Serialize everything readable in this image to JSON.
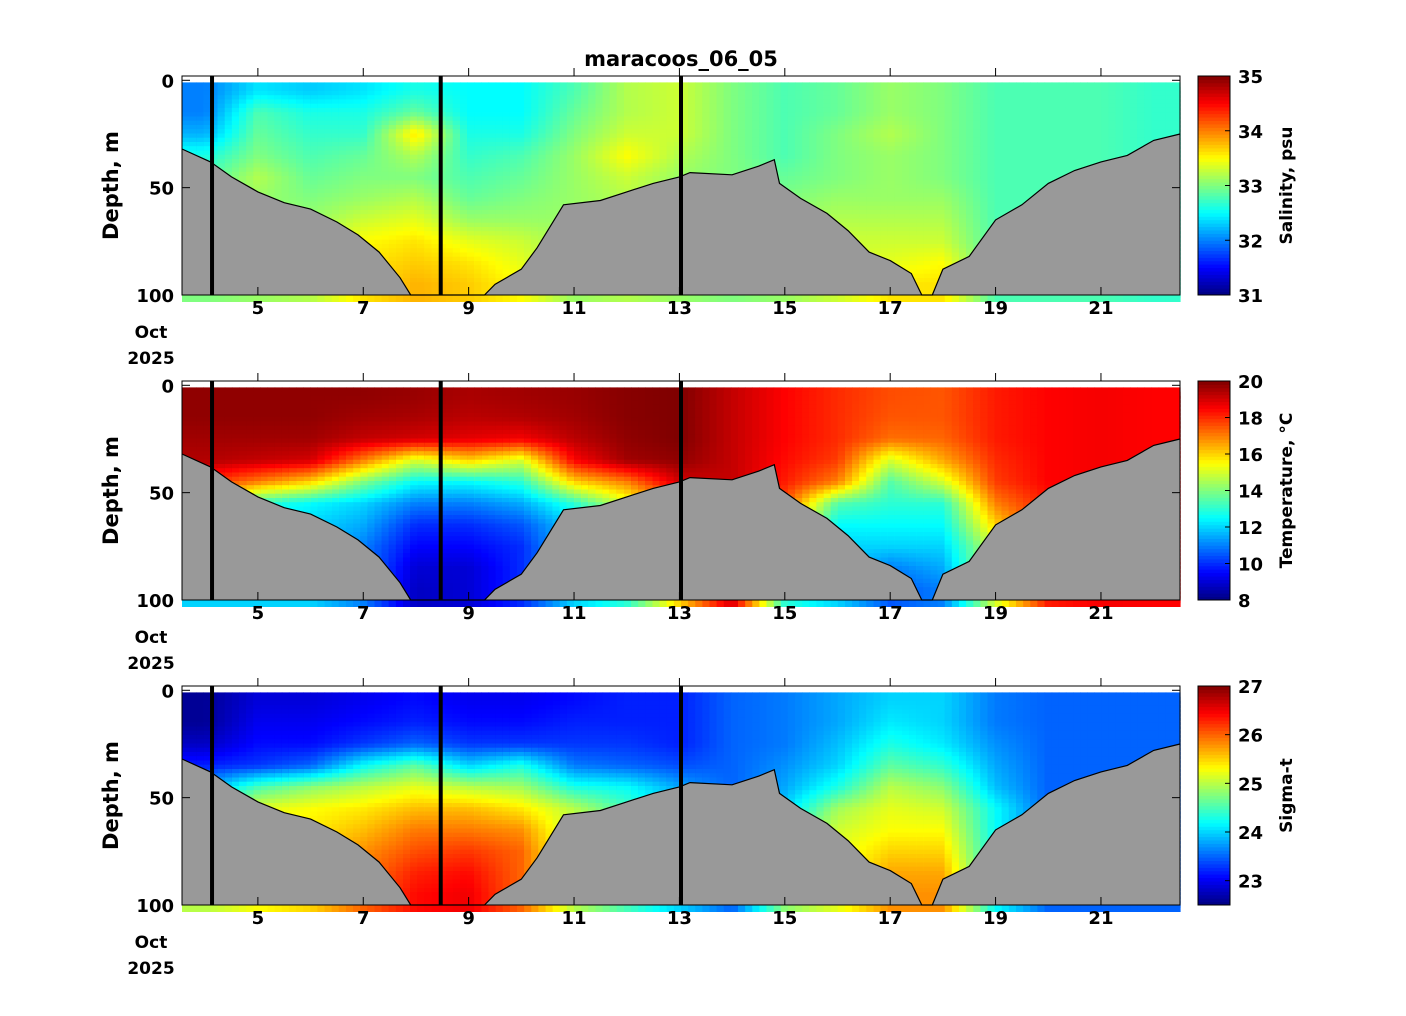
{
  "title": "maracoos_06_05",
  "date_label": {
    "month": "Oct",
    "year": "2025"
  },
  "shared": {
    "xlim_days": [
      3.56,
      22.5
    ],
    "x_ticks": [
      5,
      7,
      9,
      11,
      13,
      15,
      17,
      19,
      21
    ],
    "x_tick_labels": [
      "5",
      "7",
      "9",
      "11",
      "13",
      "15",
      "17",
      "19",
      "21"
    ],
    "ylim": [
      -2,
      100
    ],
    "y_ticks": [
      0,
      50,
      100
    ],
    "y_tick_labels": [
      "0",
      "50",
      "100"
    ],
    "ylabel": "Depth, m",
    "vertical_markers_days": [
      4.13,
      8.47,
      13.03
    ],
    "grid_days": [
      4,
      5,
      6,
      7,
      8,
      9,
      10,
      11,
      12,
      13,
      14,
      15,
      16,
      17,
      18,
      19,
      20,
      21,
      22
    ],
    "grid_depths": [
      5,
      15,
      25,
      35,
      45,
      55,
      65,
      75,
      85,
      95
    ],
    "bathymetry": {
      "days": [
        3.56,
        4.1,
        4.5,
        5.0,
        5.5,
        6.0,
        6.5,
        6.9,
        7.3,
        7.7,
        7.9,
        8.5,
        9.3,
        9.5,
        10.0,
        10.3,
        10.5,
        10.8,
        11.5,
        12.0,
        12.5,
        13.0,
        13.2,
        14.0,
        14.5,
        14.8,
        14.9,
        15.3,
        15.8,
        16.2,
        16.6,
        17.0,
        17.4,
        17.6,
        17.8,
        18.0,
        18.5,
        19.0,
        19.5,
        20.0,
        20.5,
        21.0,
        21.5,
        22.0,
        22.5
      ],
      "depths": [
        32,
        38,
        45,
        52,
        57,
        60,
        66,
        72,
        80,
        92,
        100,
        100,
        100,
        95,
        88,
        78,
        70,
        58,
        56,
        52,
        48,
        45,
        43,
        44,
        40,
        37,
        48,
        55,
        62,
        70,
        80,
        84,
        90,
        100,
        100,
        88,
        82,
        65,
        58,
        48,
        42,
        38,
        35,
        28,
        25
      ]
    }
  },
  "chart_data": [
    {
      "type": "heatmap",
      "variable": "salinity",
      "colorbar_label": "Salinity, psu",
      "clim": [
        31,
        35
      ],
      "cbar_ticks": [
        31,
        32,
        33,
        34,
        35
      ],
      "cbar_tick_labels": [
        "31",
        "32",
        "33",
        "34",
        "35"
      ],
      "values_by_day": [
        [
          32.0,
          32.0,
          32.2,
          32.6,
          32.8,
          33.0,
          33.0,
          33.0,
          33.0,
          33.0
        ],
        [
          32.4,
          32.8,
          32.9,
          33.0,
          33.2,
          33.1,
          33.1,
          33.1,
          33.1,
          33.1
        ],
        [
          32.3,
          32.6,
          32.7,
          32.8,
          32.9,
          33.0,
          33.1,
          33.2,
          33.2,
          33.2
        ],
        [
          32.4,
          32.6,
          32.7,
          32.9,
          33.0,
          33.1,
          33.3,
          33.5,
          33.6,
          33.6
        ],
        [
          32.6,
          32.9,
          33.6,
          33.2,
          33.0,
          33.2,
          33.4,
          33.6,
          33.7,
          33.8
        ],
        [
          32.5,
          32.5,
          32.6,
          32.7,
          32.8,
          32.9,
          33.1,
          33.4,
          33.6,
          33.7
        ],
        [
          32.5,
          32.5,
          32.6,
          32.8,
          32.9,
          33.0,
          33.1,
          33.3,
          33.4,
          33.5
        ],
        [
          32.8,
          32.9,
          33.0,
          33.1,
          33.1,
          33.1,
          33.1,
          33.1,
          33.1,
          33.1
        ],
        [
          33.2,
          33.2,
          33.3,
          33.5,
          33.3,
          33.2,
          33.2,
          33.2,
          33.2,
          33.2
        ],
        [
          33.3,
          33.3,
          33.3,
          33.2,
          33.1,
          33.1,
          33.1,
          33.1,
          33.1,
          33.1
        ],
        [
          33.0,
          33.0,
          33.0,
          33.0,
          33.0,
          33.0,
          33.0,
          33.0,
          33.0,
          33.0
        ],
        [
          32.8,
          32.8,
          32.8,
          32.8,
          32.9,
          33.0,
          33.1,
          33.1,
          33.1,
          33.1
        ],
        [
          32.9,
          32.9,
          33.0,
          33.0,
          33.0,
          33.1,
          33.2,
          33.3,
          33.3,
          33.3
        ],
        [
          33.1,
          33.1,
          33.2,
          33.1,
          33.1,
          33.1,
          33.2,
          33.3,
          33.4,
          33.6
        ],
        [
          33.0,
          33.0,
          33.0,
          33.0,
          33.0,
          33.1,
          33.2,
          33.3,
          33.5,
          33.6
        ],
        [
          32.8,
          32.8,
          32.8,
          32.8,
          32.8,
          32.8,
          32.8,
          32.8,
          32.8,
          32.8
        ],
        [
          32.8,
          32.8,
          32.8,
          32.8,
          32.8,
          32.8,
          32.8,
          32.8,
          32.8,
          32.8
        ],
        [
          32.8,
          32.8,
          32.8,
          32.8,
          32.8,
          32.8,
          32.8,
          32.8,
          32.8,
          32.8
        ],
        [
          32.7,
          32.7,
          32.7,
          32.7,
          32.7,
          32.7,
          32.7,
          32.7,
          32.7,
          32.7
        ]
      ]
    },
    {
      "type": "heatmap",
      "variable": "temperature",
      "colorbar_label": "Temperature, °C",
      "clim": [
        8,
        20
      ],
      "cbar_ticks": [
        8,
        10,
        12,
        14,
        16,
        18,
        20
      ],
      "cbar_tick_labels": [
        "8",
        "10",
        "12",
        "14",
        "16",
        "18",
        "20"
      ],
      "values_by_day": [
        [
          19.8,
          19.8,
          19.6,
          19.4,
          18.0,
          16.0,
          14.0,
          13.0,
          12.0,
          12.0
        ],
        [
          19.8,
          19.8,
          19.6,
          19.2,
          17.0,
          13.0,
          12.0,
          12.0,
          12.0,
          12.0
        ],
        [
          19.8,
          19.8,
          19.6,
          19.0,
          16.0,
          12.5,
          12.0,
          12.0,
          12.0,
          12.0
        ],
        [
          19.8,
          19.6,
          19.2,
          17.0,
          14.0,
          12.0,
          11.5,
          11.0,
          11.0,
          11.0
        ],
        [
          19.7,
          19.5,
          19.0,
          15.0,
          12.5,
          11.0,
          10.0,
          9.5,
          9.0,
          8.8
        ],
        [
          19.5,
          19.3,
          18.8,
          16.0,
          12.5,
          11.0,
          10.0,
          9.5,
          9.0,
          9.0
        ],
        [
          19.6,
          19.4,
          18.6,
          15.0,
          13.0,
          11.5,
          10.5,
          10.0,
          10.0,
          10.0
        ],
        [
          19.7,
          19.6,
          19.3,
          18.5,
          16.0,
          13.0,
          12.0,
          12.0,
          12.0,
          12.0
        ],
        [
          19.9,
          19.9,
          19.8,
          19.6,
          17.0,
          15.0,
          13.0,
          13.0,
          13.0,
          13.0
        ],
        [
          20.0,
          20.0,
          20.0,
          19.8,
          19.0,
          17.0,
          16.0,
          16.0,
          16.0,
          16.0
        ],
        [
          19.2,
          19.2,
          19.2,
          19.2,
          19.2,
          19.0,
          19.0,
          19.0,
          19.0,
          19.0
        ],
        [
          18.5,
          18.5,
          18.5,
          18.4,
          18.2,
          17.5,
          16.0,
          14.0,
          13.0,
          13.0
        ],
        [
          18.0,
          18.0,
          18.0,
          17.8,
          17.0,
          13.5,
          12.5,
          12.0,
          12.0,
          12.0
        ],
        [
          17.6,
          17.5,
          17.2,
          15.0,
          13.5,
          13.0,
          12.5,
          12.0,
          11.0,
          10.5
        ],
        [
          17.5,
          17.5,
          17.3,
          16.5,
          15.0,
          13.0,
          12.5,
          12.0,
          11.5,
          11.0
        ],
        [
          18.2,
          18.2,
          18.2,
          18.0,
          17.8,
          17.0,
          16.0,
          15.0,
          15.0,
          15.0
        ],
        [
          18.5,
          18.5,
          18.5,
          18.5,
          18.5,
          18.2,
          18.2,
          18.2,
          18.2,
          18.2
        ],
        [
          18.6,
          18.6,
          18.6,
          18.6,
          18.6,
          18.6,
          18.6,
          18.6,
          18.6,
          18.6
        ],
        [
          18.5,
          18.5,
          18.5,
          18.5,
          18.5,
          18.5,
          18.5,
          18.5,
          18.5,
          18.5
        ]
      ]
    },
    {
      "type": "heatmap",
      "variable": "sigma-t",
      "colorbar_label": "Sigma-t",
      "clim": [
        22.5,
        27
      ],
      "cbar_ticks": [
        23,
        24,
        25,
        26,
        27
      ],
      "cbar_tick_labels": [
        "23",
        "24",
        "25",
        "26",
        "27"
      ],
      "values_by_day": [
        [
          22.6,
          22.6,
          22.8,
          23.2,
          23.8,
          24.5,
          25.0,
          25.0,
          25.0,
          25.0
        ],
        [
          22.9,
          23.0,
          23.1,
          23.3,
          24.5,
          25.2,
          25.3,
          25.3,
          25.3,
          25.3
        ],
        [
          22.9,
          23.0,
          23.1,
          23.5,
          24.8,
          25.3,
          25.4,
          25.5,
          25.5,
          25.5
        ],
        [
          23.0,
          23.1,
          23.3,
          24.2,
          25.0,
          25.4,
          25.6,
          25.8,
          25.9,
          26.0
        ],
        [
          23.1,
          23.2,
          23.5,
          24.6,
          25.2,
          25.6,
          25.9,
          26.1,
          26.3,
          26.4
        ],
        [
          23.0,
          23.1,
          23.3,
          24.0,
          25.0,
          25.6,
          25.9,
          26.2,
          26.4,
          26.5
        ],
        [
          23.0,
          23.1,
          23.3,
          24.3,
          24.9,
          25.4,
          25.8,
          26.0,
          26.0,
          26.0
        ],
        [
          23.1,
          23.2,
          23.3,
          23.6,
          24.3,
          25.0,
          25.0,
          25.0,
          25.0,
          25.0
        ],
        [
          23.2,
          23.2,
          23.3,
          23.5,
          24.2,
          24.5,
          24.5,
          24.5,
          24.5,
          24.5
        ],
        [
          23.2,
          23.2,
          23.2,
          23.4,
          23.8,
          24.0,
          24.0,
          24.0,
          24.0,
          24.0
        ],
        [
          23.5,
          23.5,
          23.5,
          23.5,
          23.5,
          23.5,
          23.5,
          23.5,
          23.5,
          23.5
        ],
        [
          23.6,
          23.6,
          23.6,
          23.7,
          23.8,
          24.0,
          24.5,
          24.8,
          24.8,
          24.8
        ],
        [
          23.8,
          23.8,
          23.9,
          24.0,
          24.3,
          24.9,
          25.1,
          25.2,
          25.2,
          25.2
        ],
        [
          24.0,
          24.1,
          24.3,
          24.6,
          25.0,
          25.2,
          25.3,
          25.5,
          25.7,
          25.8
        ],
        [
          24.0,
          24.0,
          24.1,
          24.4,
          24.8,
          25.1,
          25.3,
          25.5,
          25.7,
          25.8
        ],
        [
          23.6,
          23.6,
          23.7,
          23.8,
          23.9,
          24.2,
          24.2,
          24.2,
          24.2,
          24.2
        ],
        [
          23.5,
          23.5,
          23.5,
          23.5,
          23.5,
          23.5,
          23.5,
          23.5,
          23.5,
          23.5
        ],
        [
          23.5,
          23.5,
          23.5,
          23.5,
          23.5,
          23.5,
          23.5,
          23.5,
          23.5,
          23.5
        ],
        [
          23.5,
          23.5,
          23.5,
          23.5,
          23.5,
          23.5,
          23.5,
          23.5,
          23.5,
          23.5
        ]
      ]
    }
  ]
}
